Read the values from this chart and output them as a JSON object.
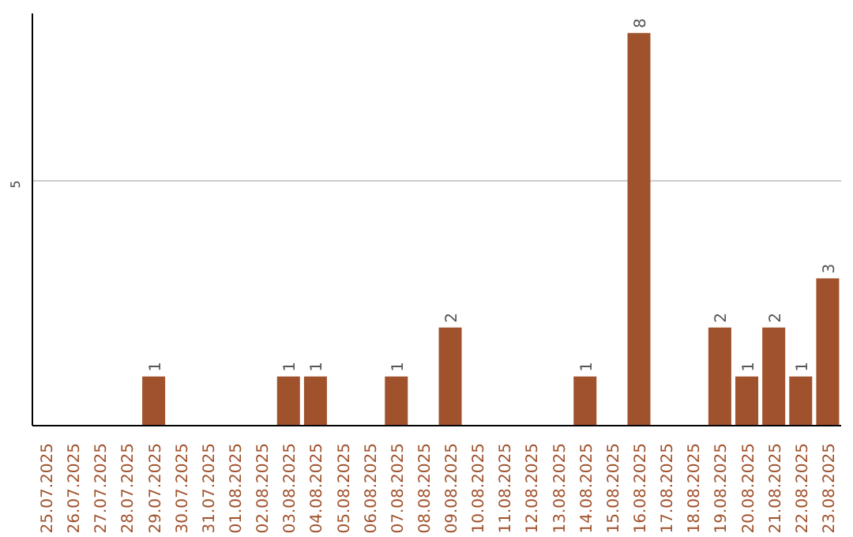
{
  "chart_data": {
    "type": "bar",
    "categories": [
      "25.07.2025",
      "26.07.2025",
      "27.07.2025",
      "28.07.2025",
      "29.07.2025",
      "30.07.2025",
      "31.07.2025",
      "01.08.2025",
      "02.08.2025",
      "03.08.2025",
      "04.08.2025",
      "05.08.2025",
      "06.08.2025",
      "07.08.2025",
      "08.08.2025",
      "09.08.2025",
      "10.08.2025",
      "11.08.2025",
      "12.08.2025",
      "13.08.2025",
      "14.08.2025",
      "15.08.2025",
      "16.08.2025",
      "17.08.2025",
      "18.08.2025",
      "19.08.2025",
      "20.08.2025",
      "21.08.2025",
      "22.08.2025",
      "23.08.2025"
    ],
    "values": [
      0,
      0,
      0,
      0,
      1,
      0,
      0,
      0,
      0,
      1,
      1,
      0,
      0,
      1,
      0,
      2,
      0,
      0,
      0,
      0,
      1,
      0,
      8,
      0,
      0,
      2,
      1,
      2,
      1,
      3
    ],
    "value_labels": [
      null,
      null,
      null,
      null,
      "1",
      null,
      null,
      null,
      null,
      "1",
      "1",
      null,
      null,
      "1",
      null,
      "2",
      null,
      null,
      null,
      null,
      "1",
      null,
      "8",
      null,
      null,
      "2",
      "1",
      "2",
      "1",
      "3"
    ],
    "color": "#a0522d",
    "ylim": [
      0,
      8.4
    ],
    "yticks": [
      5
    ],
    "grid": "y"
  }
}
